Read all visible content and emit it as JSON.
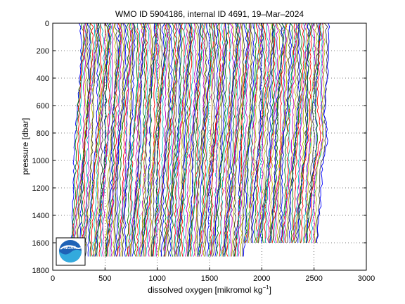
{
  "chart_data": {
    "type": "line",
    "title": "WMO ID 5904186, internal ID 4691, 19–Mar–2024",
    "xlabel": "dissolved oxygen [mikromol kg",
    "xlabel_sup": "−1",
    "xlabel_end": "]",
    "ylabel": "pressure [dbar]",
    "xlim": [
      0,
      3000
    ],
    "ylim": [
      1800,
      0
    ],
    "y_reversed": true,
    "grid": true,
    "x_ticks": [
      0,
      500,
      1000,
      1500,
      2000,
      2500,
      3000
    ],
    "y_ticks": [
      0,
      200,
      400,
      600,
      800,
      1000,
      1200,
      1400,
      1600,
      1800
    ],
    "profile_count": 190,
    "profile_offset": 12.5,
    "profile_colors": [
      "#0000ff",
      "#008000",
      "#ff0000",
      "#00bfbf",
      "#bf00bf",
      "#bfbf00",
      "#404040"
    ],
    "first_profile_surface_value": 275,
    "first_profile_bottom_value": 160,
    "bottom_pressure_full": 1700,
    "bottom_pressure_late": 1600,
    "late_profile_start_value": 1650,
    "logo": "noaa-logo"
  }
}
